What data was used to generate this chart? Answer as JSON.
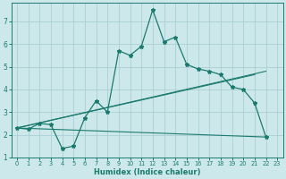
{
  "title": "",
  "xlabel": "Humidex (Indice chaleur)",
  "bg_color": "#cce8ea",
  "grid_color": "#aacfd4",
  "line_color": "#1a7a6e",
  "spine_color": "#1a7a6e",
  "xlim": [
    -0.5,
    23.5
  ],
  "ylim": [
    1,
    7.8
  ],
  "xticks": [
    0,
    1,
    2,
    3,
    4,
    5,
    6,
    7,
    8,
    9,
    10,
    11,
    12,
    13,
    14,
    15,
    16,
    17,
    18,
    19,
    20,
    21,
    22,
    23
  ],
  "yticks": [
    1,
    2,
    3,
    4,
    5,
    6,
    7
  ],
  "main_line": {
    "x": [
      0,
      1,
      2,
      3,
      4,
      5,
      6,
      7,
      8,
      9,
      10,
      11,
      12,
      13,
      14,
      15,
      16,
      17,
      18,
      19,
      20,
      21,
      22
    ],
    "y": [
      2.3,
      2.25,
      2.5,
      2.45,
      1.4,
      1.5,
      2.75,
      3.5,
      3.0,
      5.7,
      5.5,
      5.9,
      7.5,
      6.1,
      6.3,
      5.1,
      4.9,
      4.8,
      4.65,
      4.1,
      4.0,
      3.4,
      1.9
    ]
  },
  "trend_lines": [
    {
      "x": [
        0,
        22
      ],
      "y": [
        2.3,
        1.9
      ]
    },
    {
      "x": [
        0,
        21
      ],
      "y": [
        2.3,
        4.65
      ]
    },
    {
      "x": [
        0,
        22
      ],
      "y": [
        2.3,
        4.8
      ]
    }
  ]
}
